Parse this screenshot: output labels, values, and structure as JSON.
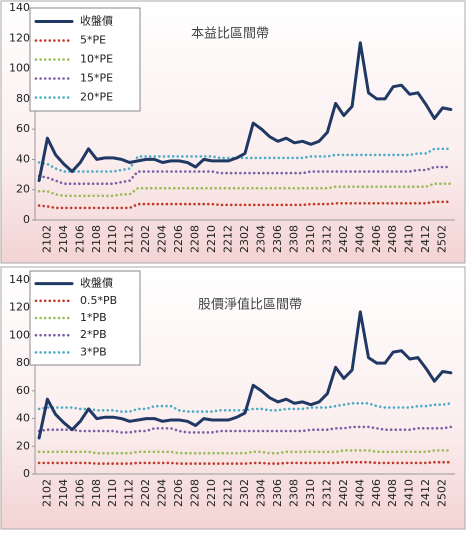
{
  "chart_data": [
    {
      "type": "line",
      "title": "本益比區間帶",
      "legend": "upper left",
      "grid": false,
      "ylim": [
        0,
        140
      ],
      "yticks": [
        0,
        20,
        40,
        60,
        80,
        100,
        120,
        140
      ],
      "categories": [
        null,
        "2102",
        null,
        "2104",
        null,
        "2106",
        null,
        "2108",
        null,
        "2110",
        null,
        "2112",
        null,
        "2202",
        null,
        "2204",
        null,
        "2206",
        null,
        "2208",
        null,
        "2210",
        null,
        "2212",
        null,
        "2302",
        null,
        "2304",
        null,
        "2306",
        null,
        "2308",
        null,
        "2310",
        null,
        "2312",
        null,
        "2402",
        null,
        "2404",
        null,
        "2406",
        null,
        "2408",
        null,
        "2410",
        null,
        "2412",
        null,
        "2502",
        null
      ],
      "series": [
        {
          "name": "收盤價",
          "color": "#1f3864",
          "style": "solid",
          "values": [
            26,
            54,
            43,
            37,
            32,
            38,
            47,
            40,
            41,
            41,
            40,
            38,
            39,
            40,
            40,
            38,
            39,
            39,
            38,
            35,
            40,
            39,
            39,
            39,
            41,
            44,
            64,
            60,
            55,
            52,
            54,
            51,
            52,
            50,
            52,
            58,
            77,
            69,
            75,
            117,
            84,
            80,
            80,
            88,
            89,
            83,
            84,
            76,
            67,
            74,
            73
          ]
        },
        {
          "name": "5*PE",
          "color": "#c0392b",
          "style": "dotted",
          "values": [
            9.5,
            9,
            8,
            8,
            8,
            8,
            8,
            8,
            8,
            8,
            8,
            8,
            10.5,
            10.5,
            10.5,
            10.5,
            10.5,
            10.5,
            10.5,
            10.5,
            10.5,
            10.5,
            10,
            10,
            10,
            10,
            10,
            10,
            10,
            10,
            10,
            10,
            10,
            10.5,
            10.5,
            10.5,
            11,
            11,
            11,
            11,
            11,
            11,
            11,
            11,
            11,
            11,
            11,
            11,
            12,
            12,
            12
          ]
        },
        {
          "name": "10*PE",
          "color": "#9bbb59",
          "style": "dotted",
          "values": [
            19,
            19,
            17,
            16,
            16,
            16,
            16,
            16,
            16,
            16,
            17,
            17,
            21,
            21,
            21,
            21,
            21,
            21,
            21,
            21,
            21,
            21,
            21,
            21,
            21,
            21,
            21,
            21,
            21,
            21,
            21,
            21,
            21,
            21,
            21,
            21,
            22,
            22,
            22,
            22,
            22,
            22,
            22,
            22,
            22,
            22,
            22,
            22,
            24,
            24,
            24
          ]
        },
        {
          "name": "15*PE",
          "color": "#7b5ea7",
          "style": "dotted",
          "values": [
            29,
            28,
            26,
            24,
            24,
            24,
            24,
            24,
            24,
            24,
            25,
            26,
            32,
            32,
            32,
            32,
            32,
            32,
            32,
            32,
            32,
            32,
            31,
            31,
            31,
            31,
            31,
            31,
            31,
            31,
            31,
            31,
            31,
            32,
            32,
            32,
            32,
            32,
            32,
            32,
            32,
            32,
            32,
            32,
            32,
            32,
            33,
            33,
            35,
            35,
            35
          ]
        },
        {
          "name": "20*PE",
          "color": "#4bacc6",
          "style": "dotted",
          "values": [
            38,
            37,
            34,
            32,
            32,
            32,
            32,
            32,
            32,
            32,
            33,
            34,
            42,
            42,
            42,
            42,
            42,
            42,
            42,
            42,
            42,
            42,
            41,
            41,
            41,
            41,
            41,
            41,
            41,
            41,
            41,
            41,
            41,
            42,
            42,
            42,
            43,
            43,
            43,
            43,
            43,
            43,
            43,
            43,
            43,
            43,
            44,
            44,
            47,
            47,
            47
          ]
        }
      ]
    },
    {
      "type": "line",
      "title": "股價淨值比區間帶",
      "legend": "upper left",
      "grid": false,
      "ylim": [
        0,
        140
      ],
      "yticks": [
        0,
        20,
        40,
        60,
        80,
        100,
        120,
        140
      ],
      "categories": [
        null,
        "2102",
        null,
        "2104",
        null,
        "2106",
        null,
        "2108",
        null,
        "2110",
        null,
        "2112",
        null,
        "2202",
        null,
        "2204",
        null,
        "2206",
        null,
        "2208",
        null,
        "2210",
        null,
        "2212",
        null,
        "2302",
        null,
        "2304",
        null,
        "2306",
        null,
        "2308",
        null,
        "2310",
        null,
        "2312",
        null,
        "2402",
        null,
        "2404",
        null,
        "2406",
        null,
        "2408",
        null,
        "2410",
        null,
        "2412",
        null,
        "2502",
        null
      ],
      "series": [
        {
          "name": "收盤價",
          "color": "#1f3864",
          "style": "solid",
          "values": [
            26,
            54,
            43,
            37,
            32,
            38,
            47,
            40,
            41,
            41,
            40,
            38,
            39,
            40,
            40,
            38,
            39,
            39,
            38,
            35,
            40,
            39,
            39,
            39,
            41,
            44,
            64,
            60,
            55,
            52,
            54,
            51,
            52,
            50,
            52,
            58,
            77,
            69,
            75,
            117,
            84,
            80,
            80,
            88,
            89,
            83,
            84,
            76,
            67,
            74,
            73
          ]
        },
        {
          "name": "0.5*PB",
          "color": "#c0392b",
          "style": "dotted",
          "values": [
            8,
            8,
            8,
            8,
            8,
            8,
            8,
            7.5,
            7.5,
            7.5,
            7.5,
            7.5,
            8,
            8,
            8,
            8,
            8,
            7.5,
            7.5,
            7.5,
            7.5,
            7.5,
            7.5,
            7.5,
            7.5,
            7.5,
            8,
            8,
            7.5,
            7.5,
            8,
            8,
            8,
            8,
            8,
            8,
            8,
            8.5,
            8.5,
            8.5,
            8.5,
            8,
            8,
            8,
            8,
            8,
            8,
            8,
            8.5,
            8.5,
            8.5
          ]
        },
        {
          "name": "1*PB",
          "color": "#9bbb59",
          "style": "dotted",
          "values": [
            16,
            16,
            16,
            16,
            16,
            16,
            16,
            15,
            15,
            15,
            15,
            15,
            16,
            16,
            16,
            16,
            16,
            15,
            15,
            15,
            15,
            15,
            15,
            15,
            15,
            15,
            16,
            16,
            15,
            15,
            16,
            16,
            16,
            16,
            16,
            16,
            16,
            17,
            17,
            17,
            17,
            16,
            16,
            16,
            16,
            16,
            16,
            16,
            17,
            17,
            17
          ]
        },
        {
          "name": "2*PB",
          "color": "#7b5ea7",
          "style": "dotted",
          "values": [
            31,
            32,
            32,
            32,
            32,
            31,
            31,
            31,
            31,
            31,
            30,
            30,
            31,
            31,
            33,
            33,
            33,
            31,
            30,
            30,
            30,
            30,
            31,
            31,
            31,
            31,
            31,
            31,
            31,
            31,
            31,
            31,
            31,
            32,
            32,
            32,
            33,
            33,
            34,
            34,
            34,
            33,
            32,
            32,
            32,
            32,
            33,
            33,
            33,
            33,
            34
          ]
        },
        {
          "name": "3*PB",
          "color": "#4bacc6",
          "style": "dotted",
          "values": [
            47,
            48,
            48,
            48,
            48,
            47,
            47,
            46,
            46,
            46,
            45,
            45,
            47,
            47,
            49,
            49,
            49,
            46,
            45,
            45,
            45,
            45,
            46,
            46,
            46,
            46,
            47,
            47,
            46,
            46,
            47,
            47,
            47,
            48,
            48,
            48,
            49,
            50,
            51,
            51,
            51,
            49,
            48,
            48,
            48,
            48,
            49,
            49,
            50,
            50,
            51
          ]
        }
      ]
    }
  ]
}
